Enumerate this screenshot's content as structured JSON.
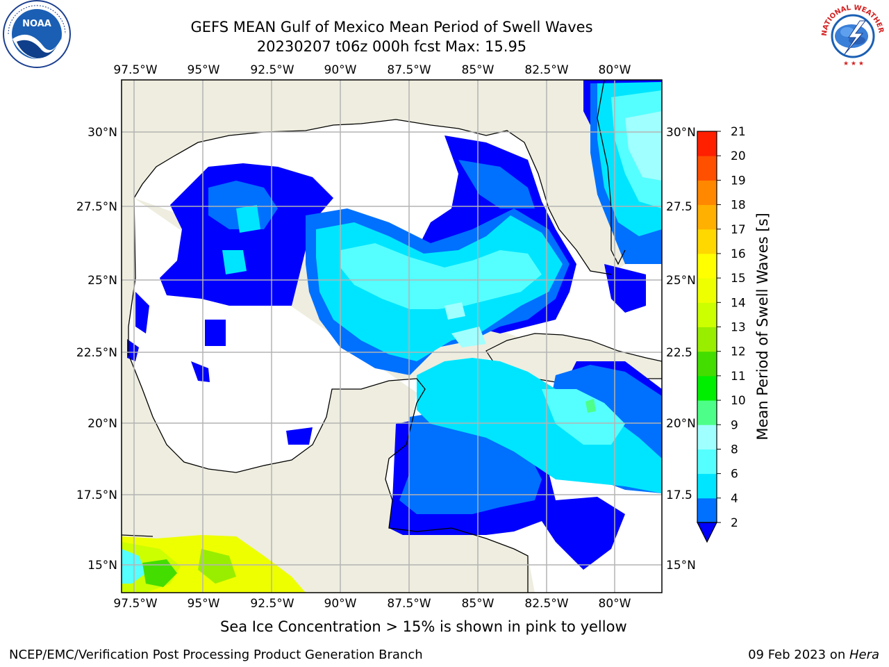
{
  "title": {
    "line1": "GEFS MEAN Gulf of Mexico Mean Period of Swell Waves",
    "line2": "20230207 t06z 000h fcst   Max: 15.95"
  },
  "map": {
    "lon_labels": [
      "97.5°W",
      "95°W",
      "92.5°W",
      "90°W",
      "87.5°W",
      "85°W",
      "82.5°W",
      "80°W"
    ],
    "lat_labels_left": [
      "30°N",
      "27.5°N",
      "25°N",
      "22.5°N",
      "20°N",
      "17.5°N",
      "15°N"
    ],
    "lat_labels_right": [
      "30°N",
      "27.5",
      "25°N",
      "22.5",
      "20°N",
      "17.5",
      "15°N"
    ],
    "colors": {
      "land": "#eeeddf",
      "ocean": "#ffffff",
      "grid": "#b3b3b3"
    }
  },
  "colorbar": {
    "label": "Mean Period of Swell Waves [s]",
    "ticks": [
      "2",
      "4",
      "6",
      "8",
      "9",
      "10",
      "11",
      "12",
      "13",
      "14",
      "15",
      "16",
      "17",
      "18",
      "19",
      "20",
      "21"
    ],
    "colors": [
      "#0000ff",
      "#0070ff",
      "#00e5ff",
      "#55ffff",
      "#a0ffff",
      "#4dff88",
      "#00ee00",
      "#44dd00",
      "#99ee00",
      "#ccff00",
      "#eeff00",
      "#ffff00",
      "#ffd800",
      "#ffb000",
      "#ff8800",
      "#ff5000",
      "#ff2000",
      "#ff0000"
    ]
  },
  "footer": {
    "note": "Sea Ice Concentration > 15% is shown in pink to yellow",
    "credit": "NCEP/EMC/Verification Post Processing Product Generation Branch",
    "date": "09 Feb 2023 on ",
    "host": "Hera"
  },
  "logos": {
    "left": "NOAA",
    "right_ring": "NATIONAL WEATHER SERVICE"
  }
}
